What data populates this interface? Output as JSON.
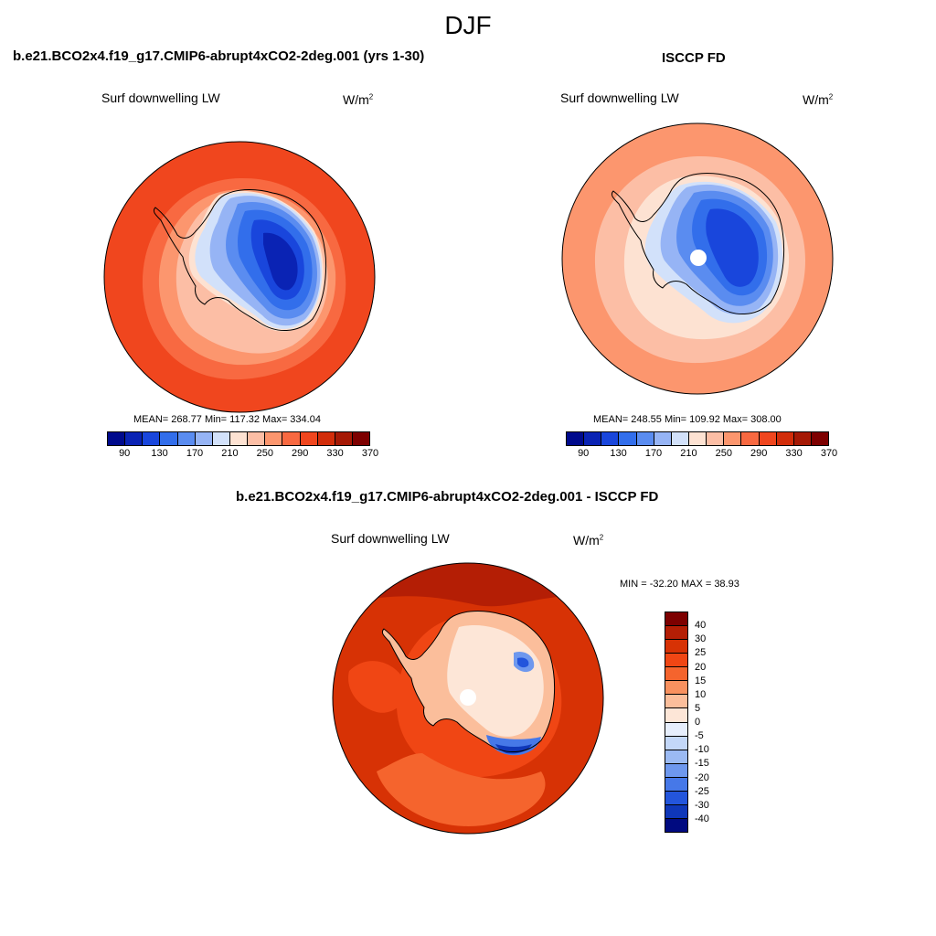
{
  "figure": {
    "season": "DJF"
  },
  "panels": [
    {
      "title": "b.e21.BCO2x4.f19_g17.CMIP6-abrupt4xCO2-2deg.001 (yrs 1-30)",
      "variable": "Surf downwelling LW",
      "units_base": "W/m",
      "units_exp": "2",
      "stats": "MEAN= 268.77  Min= 117.32  Max= 334.04",
      "colorbar_ticks": [
        "90",
        "130",
        "170",
        "210",
        "250",
        "290",
        "330",
        "370"
      ]
    },
    {
      "title": "ISCCP FD",
      "variable": "Surf downwelling LW",
      "units_base": "W/m",
      "units_exp": "2",
      "stats": "MEAN= 248.55  Min= 109.92  Max= 308.00",
      "colorbar_ticks": [
        "90",
        "130",
        "170",
        "210",
        "250",
        "290",
        "330",
        "370"
      ]
    },
    {
      "title": "b.e21.BCO2x4.f19_g17.CMIP6-abrupt4xCO2-2deg.001 - ISCCP FD",
      "variable": "Surf downwelling LW",
      "units_base": "W/m",
      "units_exp": "2",
      "stats": "MIN = -32.20 MAX =  38.93",
      "colorbar_ticks": [
        "40",
        "30",
        "25",
        "20",
        "15",
        "10",
        "5",
        "0",
        "-5",
        "-10",
        "-15",
        "-20",
        "-25",
        "-30",
        "-40"
      ]
    }
  ],
  "colors": {
    "abs_colormap": [
      "#000a8c",
      "#0a23b4",
      "#1946dc",
      "#326eeb",
      "#5a8cf0",
      "#96b4f5",
      "#d2e1fa",
      "#fde2d2",
      "#fcbea5",
      "#fc966e",
      "#f86941",
      "#f0461e",
      "#d22d0a",
      "#a51905",
      "#7d0000"
    ],
    "diff_colormap": [
      "#7d0000",
      "#b41e05",
      "#d73205",
      "#f04614",
      "#f5642d",
      "#f8915f",
      "#fbbe9b",
      "#fde6d7",
      "#e6eefc",
      "#c3d7f8",
      "#9bbaf3",
      "#6e98ee",
      "#4678e8",
      "#2355dc",
      "#0f37b9",
      "#000a80"
    ]
  },
  "chart_data": [
    {
      "type": "heatmap",
      "projection": "south polar stereographic",
      "title": "b.e21.BCO2x4.f19_g17.CMIP6-abrupt4xCO2-2deg.001 (yrs 1-30)",
      "variable": "Surf downwelling LW",
      "units": "W/m^2",
      "mean": 268.77,
      "min": 117.32,
      "max": 334.04,
      "contour_levels": [
        90,
        110,
        130,
        150,
        170,
        190,
        210,
        230,
        250,
        270,
        290,
        310,
        330,
        350,
        370
      ]
    },
    {
      "type": "heatmap",
      "projection": "south polar stereographic",
      "title": "ISCCP FD",
      "variable": "Surf downwelling LW",
      "units": "W/m^2",
      "mean": 248.55,
      "min": 109.92,
      "max": 308.0,
      "contour_levels": [
        90,
        110,
        130,
        150,
        170,
        190,
        210,
        230,
        250,
        270,
        290,
        310,
        330,
        350,
        370
      ]
    },
    {
      "type": "heatmap",
      "projection": "south polar stereographic",
      "title": "b.e21.BCO2x4.f19_g17.CMIP6-abrupt4xCO2-2deg.001 - ISCCP FD",
      "variable": "Surf downwelling LW",
      "units": "W/m^2",
      "min": -32.2,
      "max": 38.93,
      "contour_levels": [
        -40,
        -30,
        -25,
        -20,
        -15,
        -10,
        -5,
        0,
        5,
        10,
        15,
        20,
        25,
        30,
        40
      ]
    }
  ]
}
